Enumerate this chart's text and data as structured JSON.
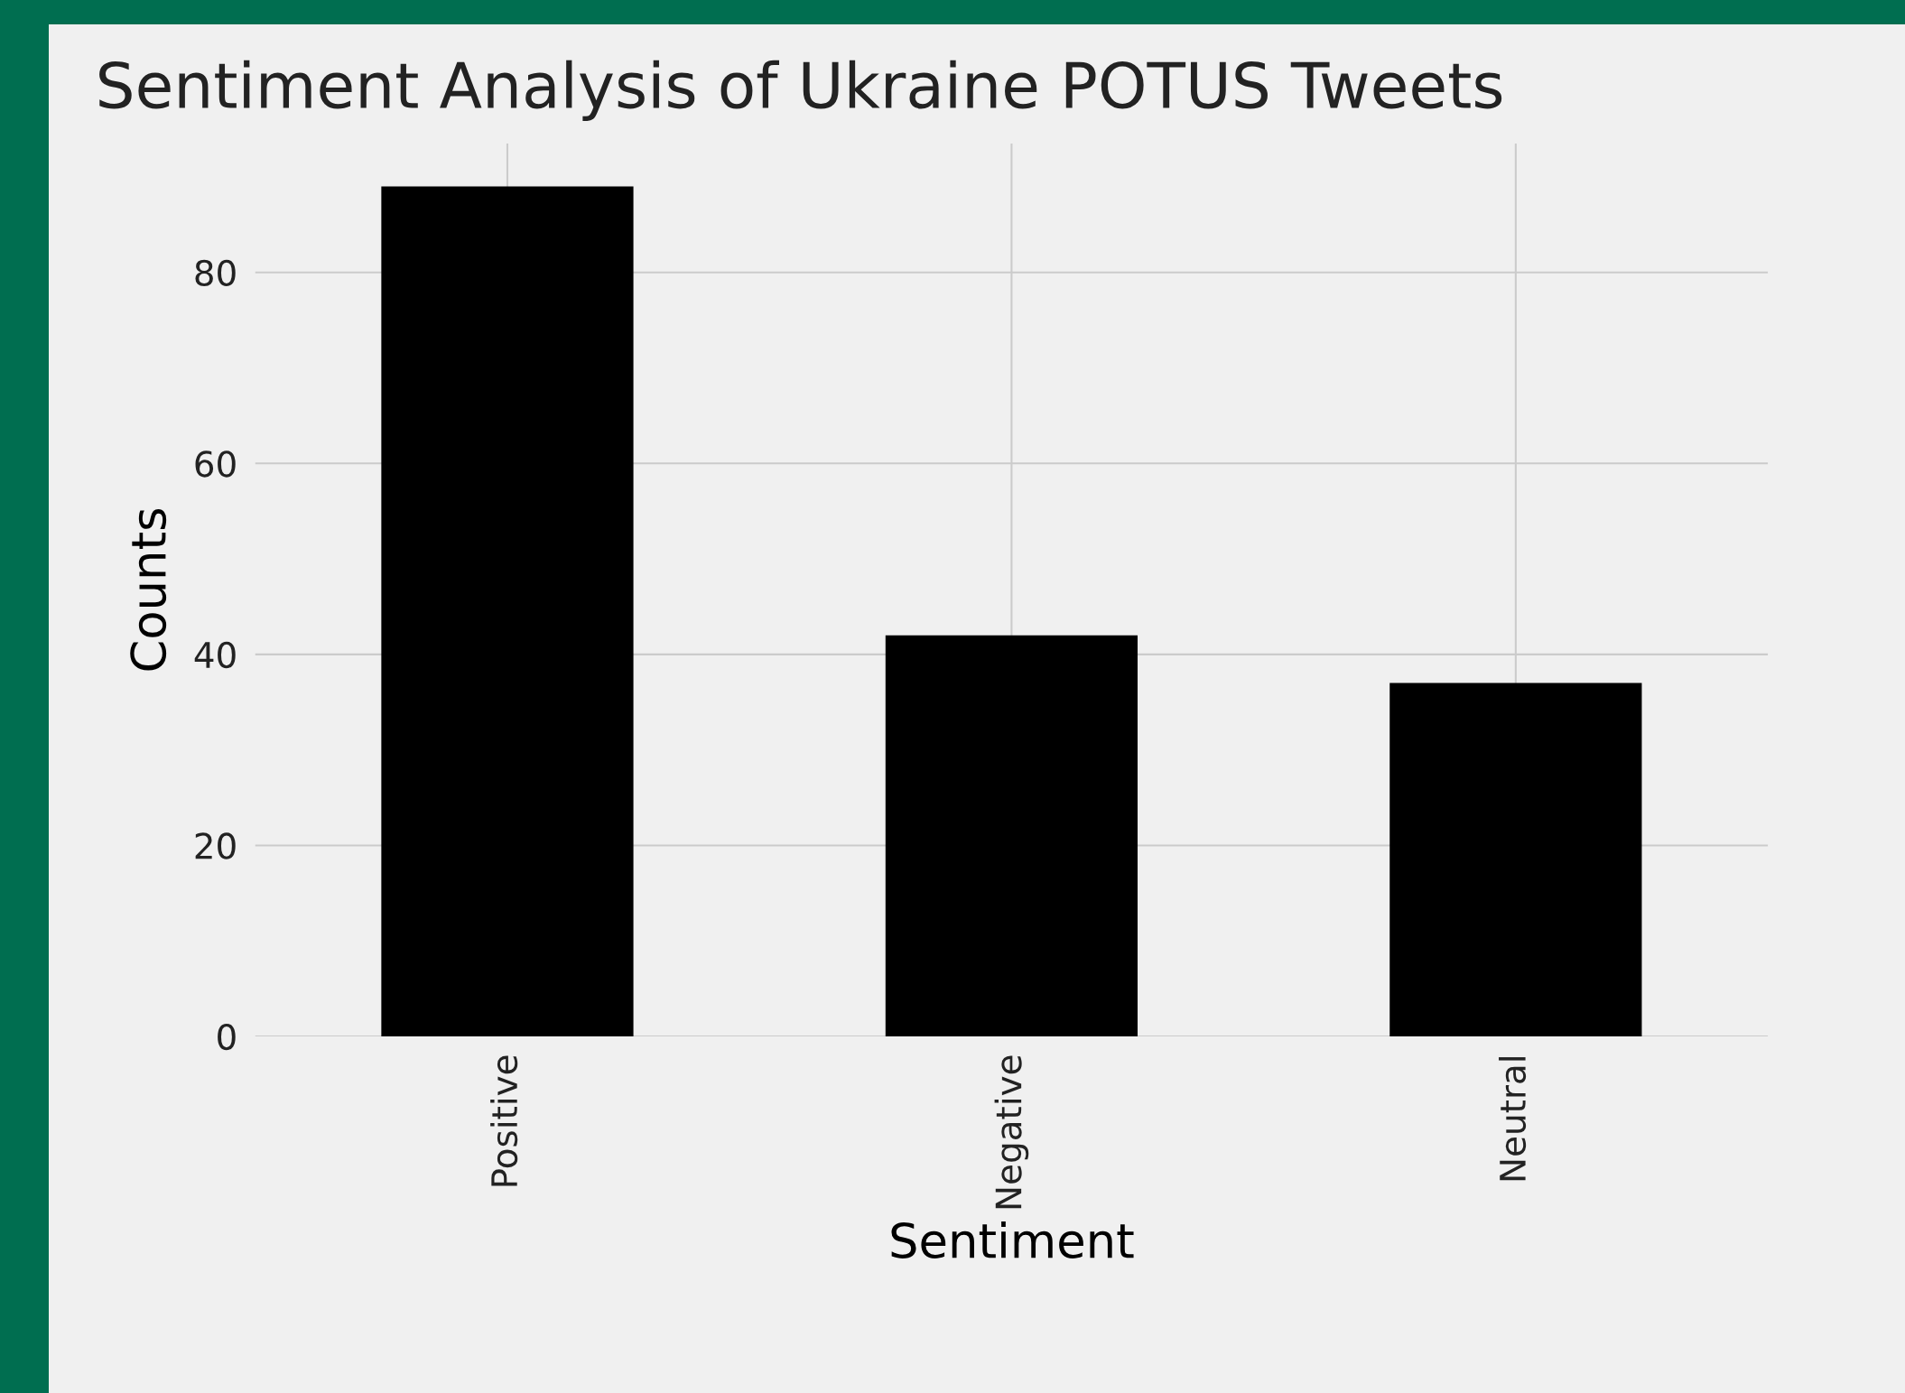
{
  "chart_data": {
    "type": "bar",
    "title": "Sentiment Analysis of Ukraine POTUS Tweets",
    "xlabel": "Sentiment",
    "ylabel": "Counts",
    "categories": [
      "Positive",
      "Negative",
      "Neutral"
    ],
    "values": [
      89,
      42,
      37
    ],
    "color": "#000000",
    "ylim": [
      0,
      93.5
    ],
    "yticks": [
      0,
      20,
      40,
      60,
      80
    ],
    "grid": true
  }
}
